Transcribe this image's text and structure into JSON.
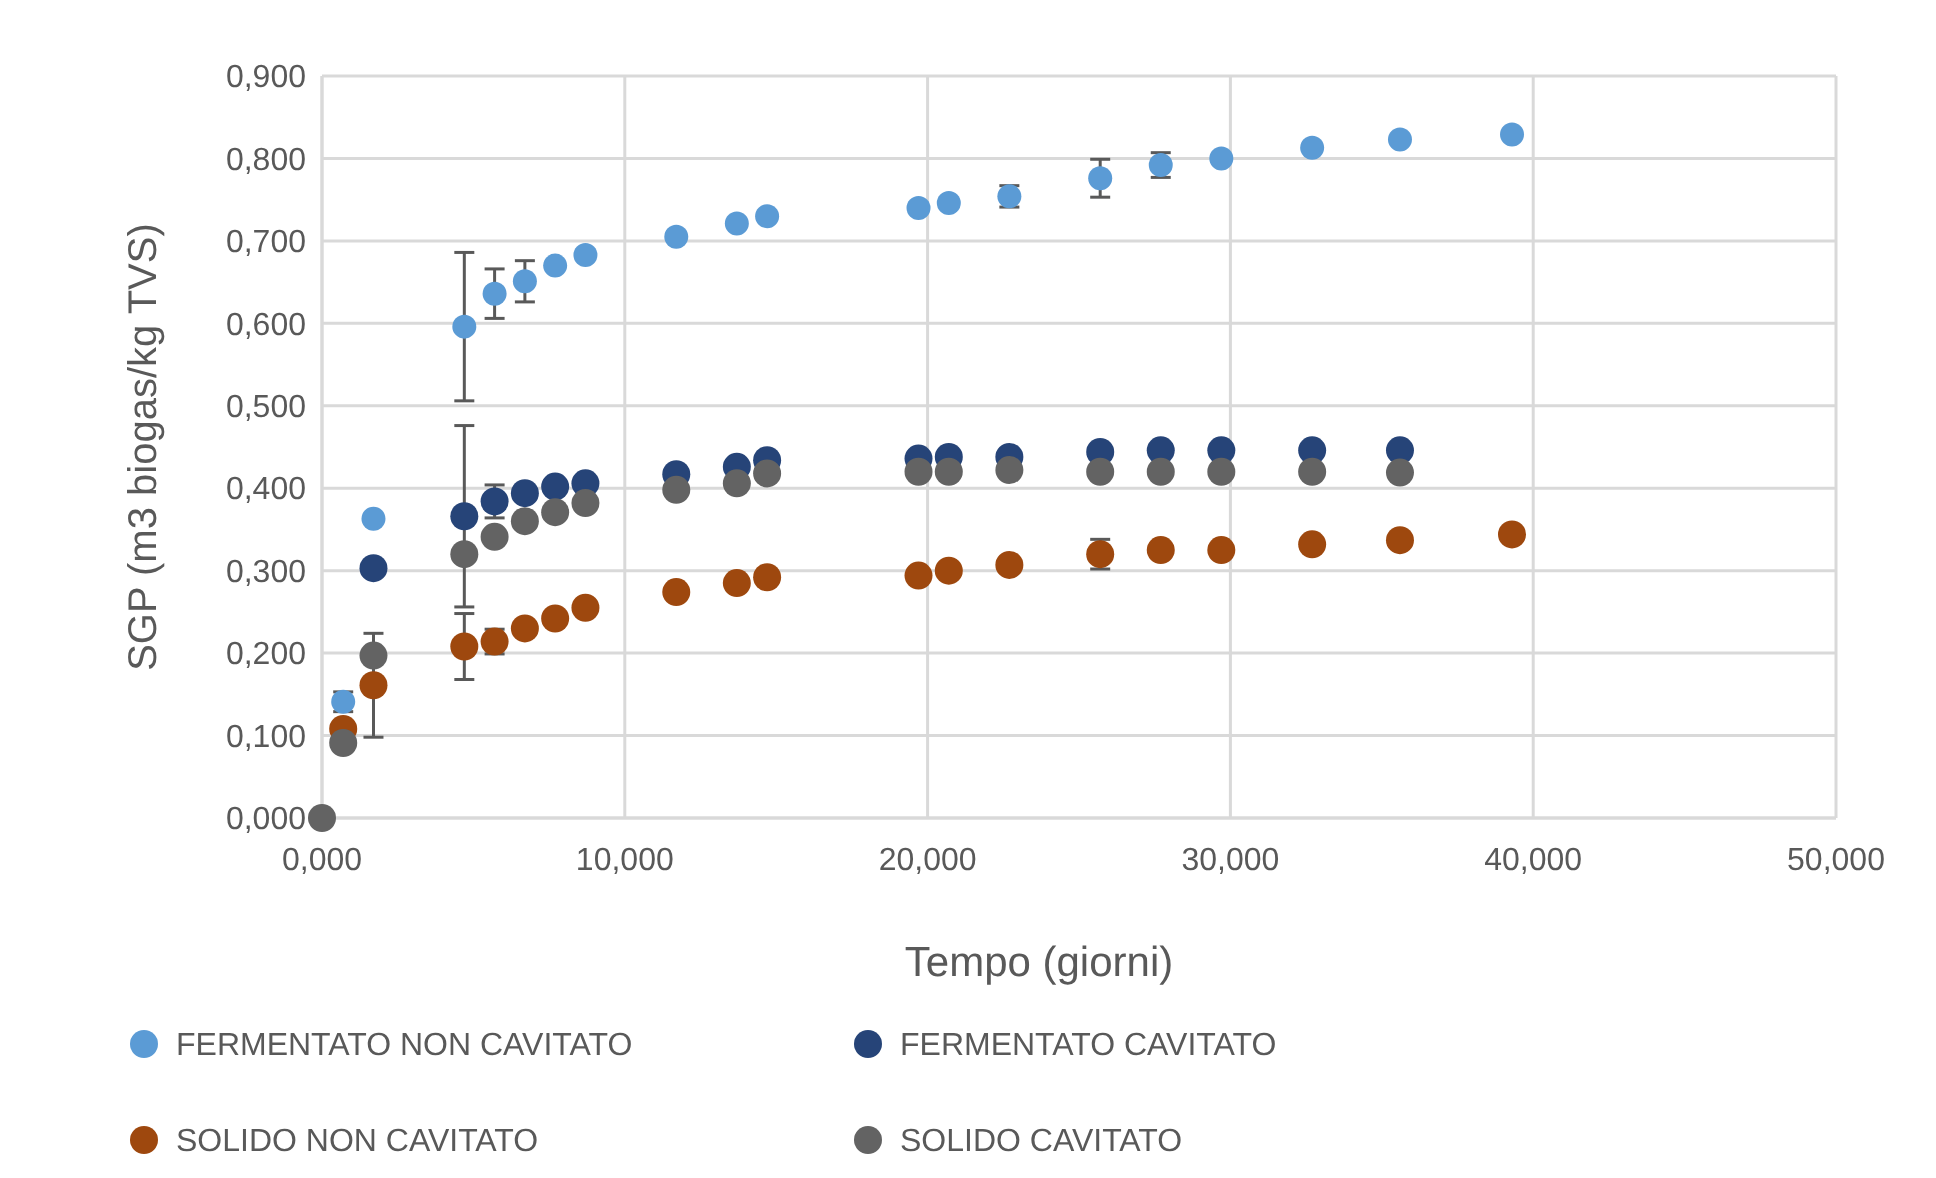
{
  "chart_data": {
    "type": "scatter",
    "xlabel": "Tempo (giorni)",
    "ylabel": "SGP (m3 biogas/kg TVS)",
    "xlim": [
      0,
      50
    ],
    "ylim": [
      0,
      0.9
    ],
    "xticks": [
      {
        "value": 0,
        "label": "0,000"
      },
      {
        "value": 10,
        "label": "10,000"
      },
      {
        "value": 20,
        "label": "20,000"
      },
      {
        "value": 30,
        "label": "30,000"
      },
      {
        "value": 40,
        "label": "40,000"
      },
      {
        "value": 50,
        "label": "50,000"
      }
    ],
    "yticks": [
      {
        "value": 0,
        "label": "0,000"
      },
      {
        "value": 0.1,
        "label": "0,100"
      },
      {
        "value": 0.2,
        "label": "0,200"
      },
      {
        "value": 0.3,
        "label": "0,300"
      },
      {
        "value": 0.4,
        "label": "0,400"
      },
      {
        "value": 0.5,
        "label": "0,500"
      },
      {
        "value": 0.6,
        "label": "0,600"
      },
      {
        "value": 0.7,
        "label": "0,700"
      },
      {
        "value": 0.8,
        "label": "0,800"
      },
      {
        "value": 0.9,
        "label": "0,900"
      }
    ],
    "grid": true,
    "legend": "bottom",
    "marker": "circle",
    "series": [
      {
        "name": "FERMENTATO NON CAVITATO",
        "color": "#5b9bd5",
        "x": [
          0.7,
          1.7,
          4.7,
          5.7,
          6.7,
          7.7,
          8.7,
          11.7,
          13.7,
          14.7,
          19.7,
          20.7,
          22.7,
          25.7,
          27.7,
          29.7,
          32.7,
          35.6,
          39.3
        ],
        "values": [
          0.141,
          0.363,
          0.596,
          0.636,
          0.651,
          0.67,
          0.683,
          0.705,
          0.721,
          0.73,
          0.74,
          0.746,
          0.754,
          0.776,
          0.792,
          0.8,
          0.813,
          0.823,
          0.829
        ],
        "errors": [
          0.012,
          null,
          0.09,
          0.03,
          0.025,
          null,
          null,
          null,
          null,
          null,
          null,
          null,
          0.013,
          0.023,
          0.015,
          null,
          null,
          null,
          null
        ]
      },
      {
        "name": "FERMENTATO CAVITATO",
        "color": "#264478",
        "x": [
          1.7,
          4.7,
          5.7,
          6.7,
          7.7,
          8.7,
          11.7,
          13.7,
          14.7,
          19.7,
          20.7,
          22.7,
          25.7,
          27.7,
          29.7,
          32.7,
          35.6
        ],
        "values": [
          0.303,
          0.366,
          0.384,
          0.394,
          0.402,
          0.406,
          0.417,
          0.426,
          0.434,
          0.436,
          0.438,
          0.438,
          0.444,
          0.446,
          0.446,
          0.446,
          0.446
        ],
        "errors": [
          null,
          0.11,
          0.02,
          null,
          null,
          null,
          null,
          null,
          null,
          null,
          null,
          null,
          null,
          null,
          null,
          null,
          null
        ]
      },
      {
        "name": "SOLIDO NON CAVITATO",
        "color": "#9e480e",
        "x": [
          0.7,
          1.7,
          4.7,
          5.7,
          6.7,
          7.7,
          8.7,
          11.7,
          13.7,
          14.7,
          19.7,
          20.7,
          22.7,
          25.7,
          27.7,
          29.7,
          32.7,
          35.6,
          39.3
        ],
        "values": [
          0.108,
          0.161,
          0.208,
          0.214,
          0.23,
          0.242,
          0.255,
          0.274,
          0.285,
          0.292,
          0.294,
          0.3,
          0.307,
          0.32,
          0.325,
          0.325,
          0.332,
          0.337,
          0.344
        ],
        "errors": [
          null,
          0.063,
          0.04,
          0.015,
          null,
          null,
          null,
          null,
          null,
          null,
          null,
          null,
          null,
          0.018,
          null,
          null,
          null,
          null,
          null
        ]
      },
      {
        "name": "SOLIDO CAVITATO",
        "color": "#636363",
        "x": [
          0,
          0.7,
          1.7,
          4.7,
          5.7,
          6.7,
          7.7,
          8.7,
          11.7,
          13.7,
          14.7,
          19.7,
          20.7,
          22.7,
          25.7,
          27.7,
          29.7,
          32.7,
          35.6
        ],
        "values": [
          0,
          0.091,
          0.197,
          0.32,
          0.341,
          0.36,
          0.371,
          0.382,
          0.398,
          0.406,
          0.418,
          0.42,
          0.42,
          0.422,
          0.42,
          0.42,
          0.42,
          0.42,
          0.419
        ]
      }
    ]
  }
}
